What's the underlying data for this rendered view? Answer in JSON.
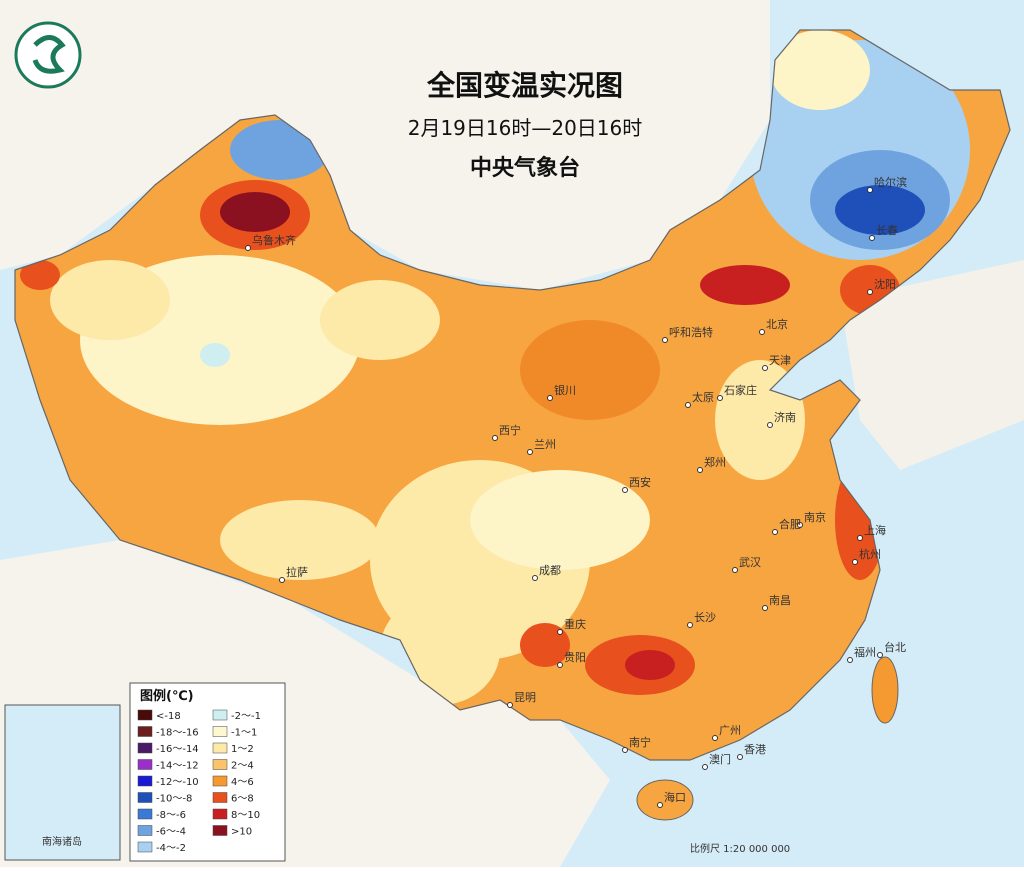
{
  "header": {
    "title": "全国变温实况图",
    "subtitle": "2月19日16时—20日16时",
    "source": "中央气象台"
  },
  "legend": {
    "title": "图例(℃)",
    "items": [
      {
        "label": "<-18",
        "color": "#4a0a0a"
      },
      {
        "label": "-18～-16",
        "color": "#6b1e1e"
      },
      {
        "label": "-16～-14",
        "color": "#4b1a66"
      },
      {
        "label": "-14～-12",
        "color": "#9b30c8"
      },
      {
        "label": "-12～-10",
        "color": "#1a1ad0"
      },
      {
        "label": "-10～-8",
        "color": "#1f4fb8"
      },
      {
        "label": "-8～-6",
        "color": "#3a7ad6"
      },
      {
        "label": "-6～-4",
        "color": "#6fa3e0"
      },
      {
        "label": "-4～-2",
        "color": "#a8d0f0"
      },
      {
        "label": "-2～-1",
        "color": "#cfeef0"
      },
      {
        "label": "-1～1",
        "color": "#fdf8d0"
      },
      {
        "label": "1～2",
        "color": "#fde9a8"
      },
      {
        "label": "2～4",
        "color": "#fbc46a"
      },
      {
        "label": "4～6",
        "color": "#f59a30"
      },
      {
        "label": "6～8",
        "color": "#e8501e"
      },
      {
        "label": "8～10",
        "color": "#c82020"
      },
      {
        "label": ">10",
        "color": "#8b1020"
      }
    ]
  },
  "cities": [
    "乌鲁木齐",
    "哈尔滨",
    "长春",
    "沈阳",
    "北京",
    "天津",
    "呼和浩特",
    "银川",
    "太原",
    "石家庄",
    "济南",
    "西宁",
    "兰州",
    "郑州",
    "西安",
    "南京",
    "合肥",
    "上海",
    "杭州",
    "武汉",
    "成都",
    "重庆",
    "拉萨",
    "长沙",
    "南昌",
    "贵阳",
    "昆明",
    "福州",
    "台北",
    "南宁",
    "广州",
    "香港",
    "澳门",
    "海口"
  ],
  "scale": "比例尺 1:20 000 000",
  "inset": "南海诸岛"
}
